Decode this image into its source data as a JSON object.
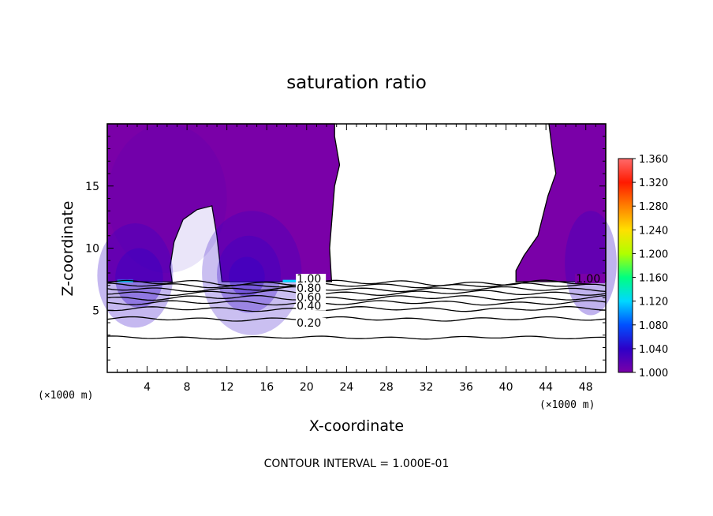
{
  "chart_data": {
    "type": "contour",
    "title": "saturation ratio",
    "xlabel": "X-coordinate",
    "ylabel": "Z-coordinate",
    "x_unit": "(×1000 m)",
    "z_unit": "(×1000 m)",
    "xlim": [
      0,
      50
    ],
    "ylim": [
      0,
      20
    ],
    "x_ticks": [
      4,
      8,
      12,
      16,
      20,
      24,
      28,
      32,
      36,
      40,
      44,
      48
    ],
    "y_ticks": [
      5,
      10,
      15
    ],
    "colorbar": {
      "min": 1.0,
      "max": 1.36,
      "ticks": [
        "1.360",
        "1.320",
        "1.280",
        "1.240",
        "1.200",
        "1.160",
        "1.120",
        "1.080",
        "1.040",
        "1.000"
      ],
      "colors": [
        "#7a00a8",
        "#2d00c8",
        "#0050ff",
        "#00d8ff",
        "#00ff80",
        "#b0ff00",
        "#ffe000",
        "#ff8000",
        "#ff1a00",
        "#ff6a6a"
      ]
    },
    "contour_levels_shown": [
      1.0,
      0.9,
      0.8,
      0.7,
      0.6,
      0.5,
      0.4,
      0.3,
      0.2
    ],
    "contour_labels": [
      "1.00",
      "0.80",
      "0.60",
      "0.40",
      "0.20",
      "1.00"
    ],
    "contour_interval": 0.1,
    "supersaturated_regions": [
      {
        "x_range": [
          0,
          6.5
        ],
        "z_range": [
          7.3,
          20
        ]
      },
      {
        "x_range": [
          11.5,
          22.5
        ],
        "z_range": [
          7.3,
          20
        ]
      },
      {
        "x_range": [
          41,
          50
        ],
        "z_range": [
          7.3,
          20
        ]
      }
    ]
  },
  "footer": "CONTOUR INTERVAL = 1.000E-01"
}
